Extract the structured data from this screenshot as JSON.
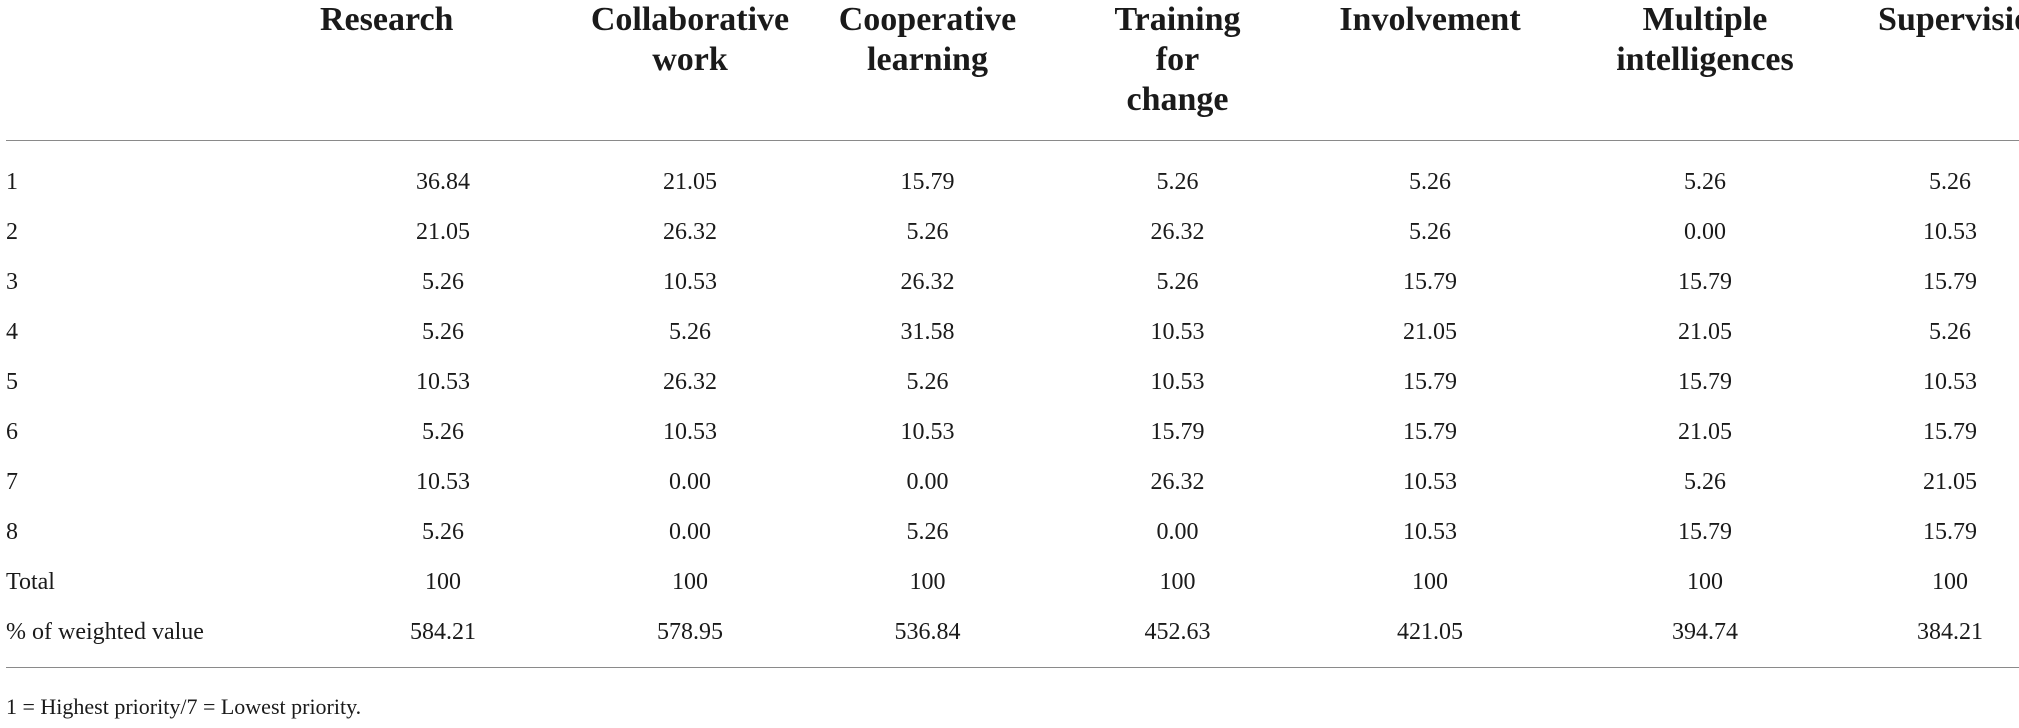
{
  "table": {
    "columns": [
      {
        "key": "research",
        "lines": [
          "Research"
        ]
      },
      {
        "key": "collaborative_work",
        "lines": [
          "Collaborative",
          "work"
        ]
      },
      {
        "key": "cooperative_learning",
        "lines": [
          "Cooperative",
          "learning"
        ]
      },
      {
        "key": "training_for_change",
        "lines": [
          "Training",
          "for",
          "change"
        ]
      },
      {
        "key": "involvement",
        "lines": [
          "Involvement"
        ]
      },
      {
        "key": "multiple_intelligences",
        "lines": [
          "Multiple",
          "intelligences"
        ]
      },
      {
        "key": "supervision",
        "lines": [
          "Supervision"
        ]
      }
    ],
    "rows": [
      {
        "label": "1",
        "values": [
          "36.84",
          "21.05",
          "15.79",
          "5.26",
          "5.26",
          "5.26",
          "5.26"
        ]
      },
      {
        "label": "2",
        "values": [
          "21.05",
          "26.32",
          "5.26",
          "26.32",
          "5.26",
          "0.00",
          "10.53"
        ]
      },
      {
        "label": "3",
        "values": [
          "5.26",
          "10.53",
          "26.32",
          "5.26",
          "15.79",
          "15.79",
          "15.79"
        ]
      },
      {
        "label": "4",
        "values": [
          "5.26",
          "5.26",
          "31.58",
          "10.53",
          "21.05",
          "21.05",
          "5.26"
        ]
      },
      {
        "label": "5",
        "values": [
          "10.53",
          "26.32",
          "5.26",
          "10.53",
          "15.79",
          "15.79",
          "10.53"
        ]
      },
      {
        "label": "6",
        "values": [
          "5.26",
          "10.53",
          "10.53",
          "15.79",
          "15.79",
          "21.05",
          "15.79"
        ]
      },
      {
        "label": "7",
        "values": [
          "10.53",
          "0.00",
          "0.00",
          "26.32",
          "10.53",
          "5.26",
          "21.05"
        ]
      },
      {
        "label": "8",
        "values": [
          "5.26",
          "0.00",
          "5.26",
          "0.00",
          "10.53",
          "15.79",
          "15.79"
        ]
      },
      {
        "label": "Total",
        "values": [
          "100",
          "100",
          "100",
          "100",
          "100",
          "100",
          "100"
        ]
      },
      {
        "label": "% of weighted value",
        "values": [
          "584.21",
          "578.95",
          "536.84",
          "452.63",
          "421.05",
          "394.74",
          "384.21"
        ]
      }
    ]
  },
  "footnote": "1 = Highest priority/7 = Lowest priority."
}
